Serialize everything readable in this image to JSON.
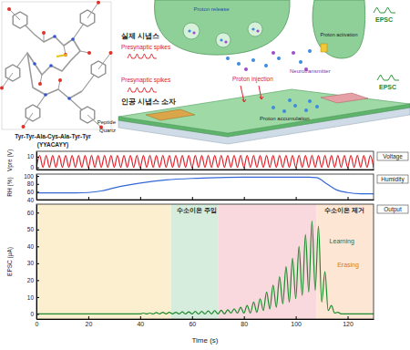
{
  "diagram": {
    "molecule": {
      "sequence": "Tyr-Tyr-Ala-Cys-Ala-Tyr-Tyr",
      "code": "(YYACAYY)"
    },
    "biological": {
      "title": "실제 시냅스",
      "input": "Presynaptic spikes",
      "release": "Proton release",
      "transmitter": "Neurotransmitter",
      "activation": "Proton activation",
      "output": "EPSC"
    },
    "device": {
      "title": "인공 시냅스 소자",
      "input": "Presynaptic spikes",
      "injection": "Proton injection",
      "accumulation": "Proton accumulation",
      "output": "EPSC",
      "layer": "Peptide",
      "substrate": "Quartz"
    }
  },
  "chart_data": [
    {
      "type": "line",
      "x": [
        0,
        1.25,
        2.5,
        3.75,
        5,
        6.25,
        7.5,
        8.75,
        10,
        11.25,
        12.5,
        13.75,
        15,
        16.25,
        17.5,
        18.75,
        20,
        21.25,
        22.5,
        23.75,
        25,
        26.25,
        27.5,
        28.75,
        30,
        31.25,
        32.5,
        33.75,
        35,
        36.25,
        37.5,
        38.75,
        40,
        41.25,
        42.5,
        43.75,
        45,
        46.25,
        47.5,
        48.75,
        50,
        51.25,
        52.5,
        53.75,
        55,
        56.25,
        57.5,
        58.75,
        60,
        61.25,
        62.5,
        63.75,
        65,
        66.25,
        67.5,
        68.75,
        70,
        71.25,
        72.5,
        73.75,
        75,
        76.25,
        77.5,
        78.75,
        80,
        81.25,
        82.5,
        83.75,
        85,
        86.25,
        87.5,
        88.75,
        90,
        91.25,
        92.5,
        93.75,
        95,
        96.25,
        97.5,
        98.75,
        100,
        101.25,
        102.5,
        103.75,
        105,
        106.25,
        107.5,
        108.75,
        110,
        111.25,
        112.5,
        113.75,
        115,
        116.25,
        117.5,
        118.75,
        120,
        121.25,
        122.5,
        123.75,
        125,
        126.25,
        127.5,
        128.75,
        130
      ],
      "series": [
        {
          "name": "Voltage",
          "color": "#e3202a",
          "values": [
            0,
            11,
            0,
            11,
            0,
            11,
            0,
            11,
            0,
            11,
            0,
            11,
            0,
            11,
            0,
            11,
            0,
            11,
            0,
            11,
            0,
            11,
            0,
            11,
            0,
            11,
            0,
            11,
            0,
            11,
            0,
            11,
            0,
            11,
            0,
            11,
            0,
            11,
            0,
            11,
            0,
            11,
            0,
            11,
            0,
            11,
            0,
            11,
            0,
            11,
            0,
            11,
            0,
            11,
            0,
            11,
            0,
            11,
            0,
            11,
            0,
            11,
            0,
            11,
            0,
            11,
            0,
            11,
            0,
            11,
            0,
            11,
            0,
            11,
            0,
            11,
            0,
            11,
            0,
            11,
            0,
            11,
            0,
            11,
            0,
            11,
            0,
            11,
            0,
            11,
            0,
            11,
            0,
            11,
            0,
            11,
            0,
            11,
            0,
            11,
            0,
            11,
            0,
            11,
            0
          ]
        }
      ],
      "ylabel": "Vpre (V)",
      "xlim": [
        0,
        130
      ],
      "ylim": [
        -2,
        15
      ],
      "xticks": [
        0,
        20,
        40,
        60,
        80,
        100,
        120
      ],
      "yticks": [
        0,
        10
      ],
      "tick_labels": "y",
      "legend": "right"
    },
    {
      "type": "line",
      "x": [
        0,
        15,
        20,
        25,
        30,
        40,
        50,
        60,
        70,
        80,
        90,
        100,
        105,
        108,
        112,
        116,
        120,
        125,
        130
      ],
      "series": [
        {
          "name": "Humidity",
          "color": "#3467d6",
          "values": [
            57,
            57,
            58,
            62,
            70,
            82,
            90,
            94,
            96,
            97,
            97,
            97,
            97,
            96,
            80,
            64,
            58,
            55,
            55
          ]
        }
      ],
      "ylabel": "RH (%)",
      "xlim": [
        0,
        130
      ],
      "ylim": [
        40,
        105
      ],
      "xticks": [
        0,
        20,
        40,
        60,
        80,
        100,
        120
      ],
      "yticks": [
        40,
        60,
        80,
        100
      ],
      "tick_labels": "y",
      "legend": "right"
    },
    {
      "type": "line",
      "x": [
        0,
        1.25,
        2.5,
        3.75,
        5,
        6.25,
        7.5,
        8.75,
        10,
        11.25,
        12.5,
        13.75,
        15,
        16.25,
        17.5,
        18.75,
        20,
        21.25,
        22.5,
        23.75,
        25,
        26.25,
        27.5,
        28.75,
        30,
        31.25,
        32.5,
        33.75,
        35,
        36.25,
        37.5,
        38.75,
        40,
        41.25,
        42.5,
        43.75,
        45,
        46.25,
        47.5,
        48.75,
        50,
        51.25,
        52.5,
        53.75,
        55,
        56.25,
        57.5,
        58.75,
        60,
        61.25,
        62.5,
        63.75,
        65,
        66.25,
        67.5,
        68.75,
        70,
        71.25,
        72.5,
        73.75,
        75,
        76.25,
        77.5,
        78.75,
        80,
        81.25,
        82.5,
        83.75,
        85,
        86.25,
        87.5,
        88.75,
        90,
        91.25,
        92.5,
        93.75,
        95,
        96.25,
        97.5,
        98.75,
        100,
        101.25,
        102.5,
        103.75,
        105,
        106.25,
        107.5,
        108.75,
        110,
        111.25,
        112.5,
        113.75,
        115,
        116.25,
        117.5,
        118.75,
        120,
        121.25,
        122.5,
        123.75,
        125,
        126.25,
        127.5,
        128.75,
        130
      ],
      "series": [
        {
          "name": "Output",
          "color": "#1c8a2c",
          "values": [
            0,
            0,
            0,
            0,
            0,
            0,
            0,
            0,
            0,
            0,
            0,
            0,
            0,
            0,
            0,
            0,
            0,
            0,
            0,
            0,
            0,
            0,
            0,
            0,
            0,
            0,
            0,
            0,
            0,
            0,
            0,
            0,
            0,
            0.5,
            0,
            0.5,
            0,
            0.8,
            0,
            1,
            0,
            1,
            0,
            1,
            0,
            1.2,
            0,
            1.3,
            0,
            1.5,
            0,
            1.5,
            0,
            1.8,
            0,
            2,
            0,
            2.2,
            0,
            2.5,
            0.5,
            3,
            0.5,
            4,
            0.5,
            5,
            0.5,
            7,
            1,
            9,
            2,
            13,
            3,
            17,
            4,
            22,
            6,
            28,
            7,
            33,
            9,
            40,
            11,
            47,
            13,
            55,
            14,
            52,
            7,
            25,
            2,
            5,
            0.5,
            1,
            0,
            0,
            0,
            0,
            0,
            0,
            0,
            0,
            0,
            0,
            0
          ]
        }
      ],
      "regions": [
        {
          "x": [
            0,
            52
          ],
          "color": "#fbefcf"
        },
        {
          "x": [
            52,
            70
          ],
          "color": "#d6ecdc"
        },
        {
          "x": [
            70,
            108
          ],
          "color": "#f9d9dd"
        },
        {
          "x": [
            108,
            130
          ],
          "color": "#fde6d4"
        }
      ],
      "annotations": [
        {
          "text": "수소이온 주입",
          "x": 54,
          "y": 60
        },
        {
          "text": "수소이온 제거",
          "x": 111,
          "y": 60
        },
        {
          "text": "Learning",
          "x": 113,
          "y": 42
        },
        {
          "text": "Erasing",
          "x": 116,
          "y": 28
        }
      ],
      "xlabel": "Time (s)",
      "ylabel": "EPSC (μA)",
      "xlim": [
        0,
        130
      ],
      "ylim": [
        -3,
        65
      ],
      "xticks": [
        0,
        20,
        40,
        60,
        80,
        100,
        120
      ],
      "yticks": [
        0,
        10,
        20,
        30,
        40,
        50,
        60
      ],
      "legend": "right"
    }
  ]
}
